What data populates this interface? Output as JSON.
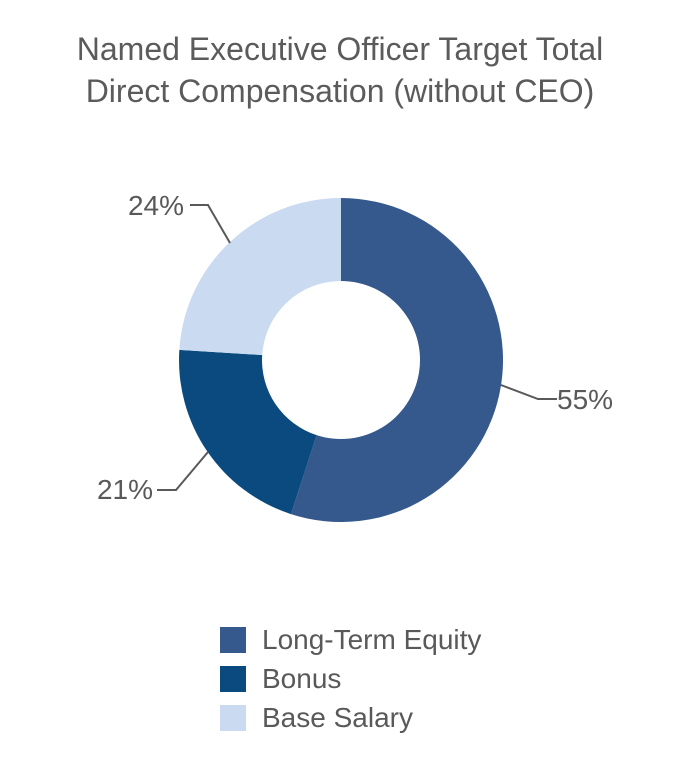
{
  "chart_data": {
    "type": "pie",
    "subtype": "donut",
    "title": "Named Executive Officer Target Total Direct Compensation (without CEO)",
    "series": [
      {
        "name": "Long-Term Equity",
        "value": 55,
        "label": "55%",
        "color": "#35598C"
      },
      {
        "name": "Bonus",
        "value": 21,
        "label": "21%",
        "color": "#0B4A7E"
      },
      {
        "name": "Base Salary",
        "value": 24,
        "label": "24%",
        "color": "#C9DAF1"
      }
    ],
    "start_angle_deg": 0,
    "direction": "clockwise",
    "donut_hole_ratio": 0.49,
    "legend_position": "bottom",
    "background_color": "#FFFFFF",
    "title_color": "#5B5B5B",
    "label_color": "#595959",
    "leader_line_color": "#595959"
  }
}
